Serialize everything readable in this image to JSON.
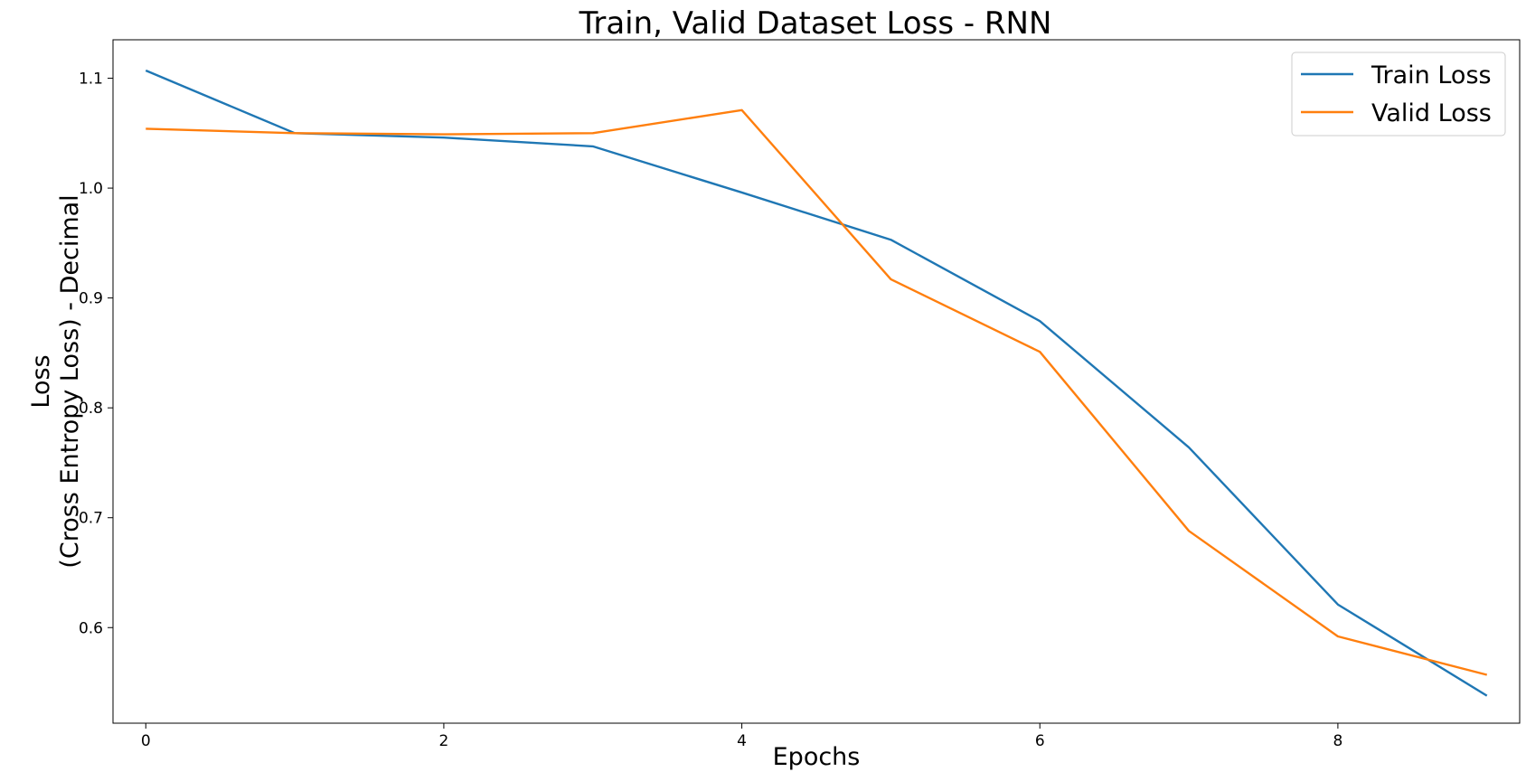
{
  "chart_data": {
    "type": "line",
    "title": "Train, Valid Dataset Loss - RNN",
    "xlabel": "Epochs",
    "ylabel_line1": "Loss",
    "ylabel_line2": "(Cross Entropy Loss) - Decimal",
    "x": [
      0,
      1,
      2,
      3,
      4,
      5,
      6,
      7,
      8,
      9
    ],
    "xlim": [
      -0.22,
      9.22
    ],
    "ylim": [
      0.513,
      1.135
    ],
    "xticks": [
      0,
      2,
      4,
      6,
      8
    ],
    "xtick_labels": [
      "0",
      "2",
      "4",
      "6",
      "8"
    ],
    "yticks": [
      0.6,
      0.7,
      0.8,
      0.9,
      1.0,
      1.1
    ],
    "ytick_labels": [
      "0.6",
      "0.7",
      "0.8",
      "0.9",
      "1.0",
      "1.1"
    ],
    "grid": false,
    "legend_position": "upper right",
    "series": [
      {
        "name": "Train Loss",
        "color": "#1f77b4",
        "values": [
          1.107,
          1.05,
          1.046,
          1.038,
          0.996,
          0.953,
          0.879,
          0.764,
          0.621,
          0.538
        ]
      },
      {
        "name": "Valid Loss",
        "color": "#ff7f0e",
        "values": [
          1.054,
          1.05,
          1.049,
          1.05,
          1.071,
          0.917,
          0.851,
          0.688,
          0.592,
          0.557
        ]
      }
    ]
  }
}
